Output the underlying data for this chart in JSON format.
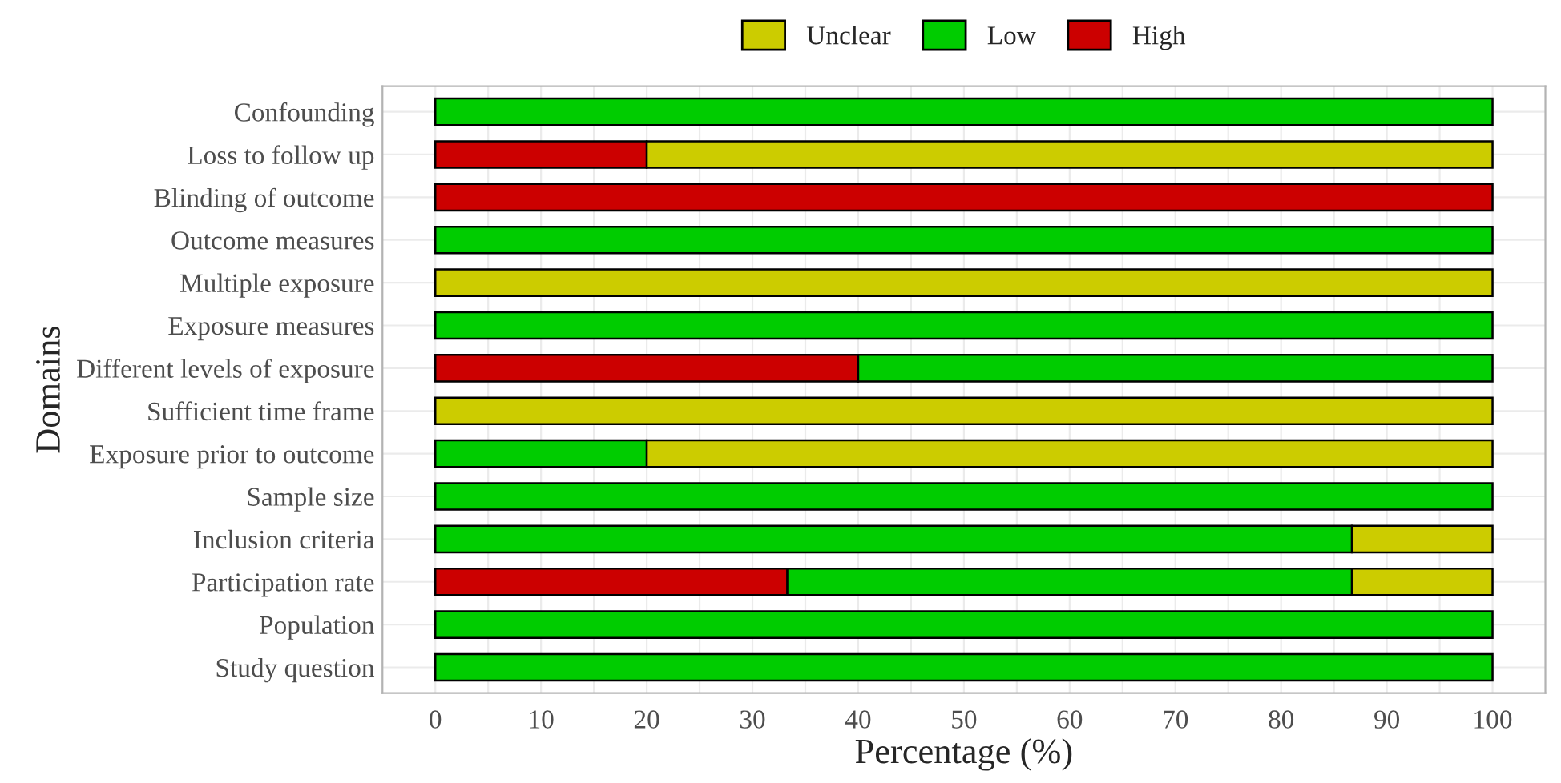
{
  "chart_data": {
    "type": "bar",
    "orientation": "horizontal",
    "stacked": true,
    "xlabel": "Percentage (%)",
    "ylabel": "Domains",
    "categories": [
      "Confounding",
      "Loss to follow up",
      "Blinding of outcome",
      "Outcome measures",
      "Multiple exposure",
      "Exposure measures",
      "Different levels of exposure",
      "Sufficient time frame",
      "Exposure prior to outcome",
      "Sample size",
      "Inclusion criteria",
      "Participation rate",
      "Population",
      "Study question"
    ],
    "series": [
      {
        "name": "High",
        "color": "#cc0000",
        "values": [
          0,
          20,
          100,
          0,
          0,
          0,
          40,
          0,
          0,
          0,
          0,
          33.3,
          0,
          0
        ]
      },
      {
        "name": "Low",
        "color": "#00cc00",
        "values": [
          100,
          0,
          0,
          100,
          0,
          100,
          60,
          0,
          20,
          100,
          86.7,
          53.4,
          100,
          100
        ]
      },
      {
        "name": "Unclear",
        "color": "#cccc00",
        "values": [
          0,
          80,
          0,
          0,
          100,
          0,
          0,
          100,
          80,
          0,
          13.3,
          13.3,
          0,
          0
        ]
      }
    ],
    "xlim": [
      -5,
      105
    ],
    "xticks": [
      0,
      10,
      20,
      30,
      40,
      50,
      60,
      70,
      80,
      90,
      100
    ],
    "grid": true,
    "legend": "top"
  }
}
